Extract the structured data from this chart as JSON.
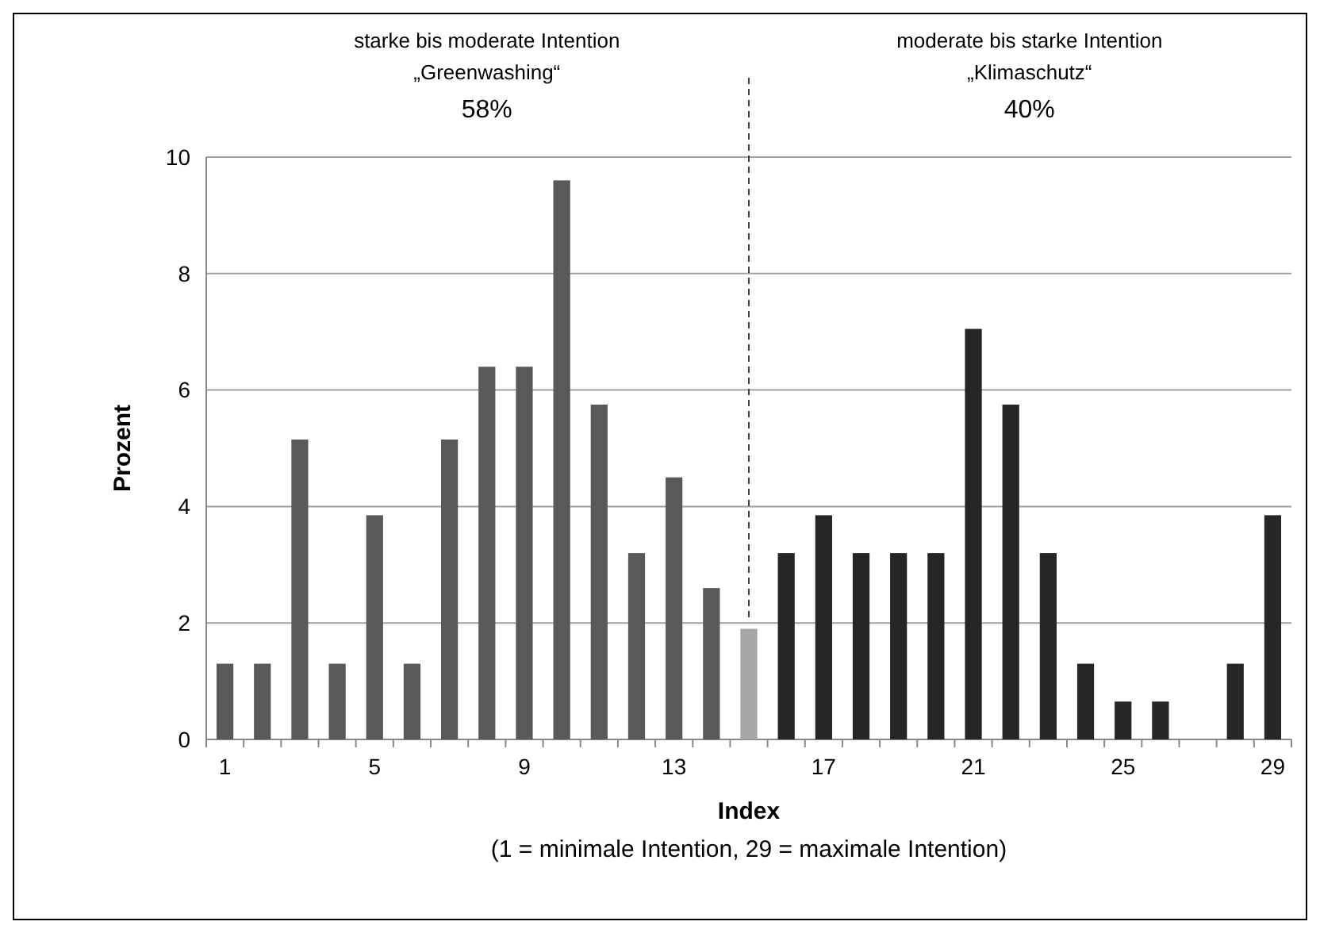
{
  "chart_data": {
    "type": "bar",
    "x": [
      1,
      2,
      3,
      4,
      5,
      6,
      7,
      8,
      9,
      10,
      11,
      12,
      13,
      14,
      15,
      16,
      17,
      18,
      19,
      20,
      21,
      22,
      23,
      24,
      25,
      26,
      27,
      28,
      29
    ],
    "values": [
      1.3,
      1.3,
      5.15,
      1.3,
      3.85,
      1.3,
      5.15,
      6.4,
      6.4,
      9.6,
      5.75,
      3.2,
      4.5,
      2.6,
      1.9,
      3.2,
      3.85,
      3.2,
      3.2,
      3.2,
      7.05,
      5.75,
      3.2,
      1.3,
      0.65,
      0.65,
      0,
      1.3,
      3.85
    ],
    "colors": [
      "#595959",
      "#595959",
      "#595959",
      "#595959",
      "#595959",
      "#595959",
      "#595959",
      "#595959",
      "#595959",
      "#595959",
      "#595959",
      "#595959",
      "#595959",
      "#595959",
      "#a6a6a6",
      "#262626",
      "#262626",
      "#262626",
      "#262626",
      "#262626",
      "#262626",
      "#262626",
      "#262626",
      "#262626",
      "#262626",
      "#262626",
      "#262626",
      "#262626",
      "#262626"
    ],
    "xlim": [
      0.5,
      29.5
    ],
    "xticks": [
      1,
      5,
      9,
      13,
      17,
      21,
      25,
      29
    ],
    "ylim": [
      0,
      10
    ],
    "yticks": [
      0,
      2,
      4,
      6,
      8,
      10
    ],
    "grid": "y",
    "xlabel": "Index",
    "ylabel": "Prozent",
    "ref_lines": [
      {
        "axis": "x",
        "value": 15,
        "line_style": "dashed",
        "color": "#404040"
      }
    ],
    "annotations": [
      "starke bis moderate Intention",
      "„Greenwashing“",
      "58%",
      "moderate bis starke Intention",
      "„Klimaschutz“",
      "40%",
      "(1 = minimale Intention, 29 = maximale Intention)"
    ]
  }
}
